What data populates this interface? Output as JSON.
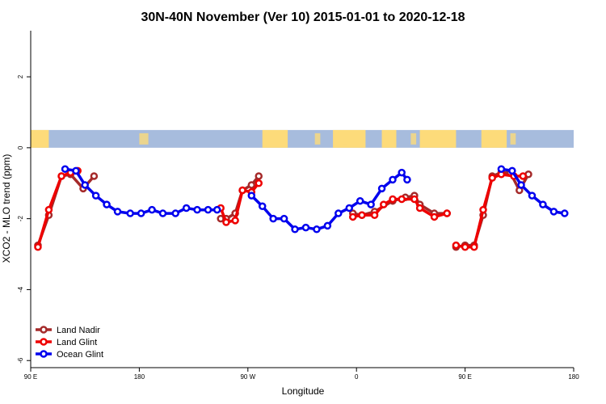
{
  "chart_data": {
    "type": "line",
    "title": "30N-40N November (Ver 10)   2015-01-01 to 2020-12-18",
    "xlabel": "Longitude",
    "ylabel": "XCO2 - MLO trend (ppm)",
    "xlim": [
      90,
      390
    ],
    "ylim": [
      -6.2,
      3.3
    ],
    "x_ticks": [
      {
        "value": 90,
        "label": "90 E"
      },
      {
        "value": 150,
        "label": "180"
      },
      {
        "value": 210,
        "label": "90 W"
      },
      {
        "value": 270,
        "label": "0"
      },
      {
        "value": 330,
        "label": "90 E"
      },
      {
        "value": 390,
        "label": "180"
      }
    ],
    "y_ticks": [
      {
        "value": 2,
        "label": "2"
      },
      {
        "value": 0,
        "label": "0"
      },
      {
        "value": -2,
        "label": "-2"
      },
      {
        "value": -4,
        "label": "-4"
      },
      {
        "value": -6,
        "label": "-6"
      }
    ],
    "map_band": {
      "y_from": 0,
      "y_to": 0.5,
      "land_color": "#FDDB7A",
      "ocean_color": "#A7BCDD"
    },
    "legend": {
      "position": "bottom-left"
    },
    "series": [
      {
        "name": "Land Nadir",
        "color": "#A52A2A",
        "segments": [
          [
            [
              94,
              -2.75
            ],
            [
              100,
              -1.9
            ],
            [
              107,
              -0.8
            ],
            [
              112,
              -0.75
            ],
            [
              119,
              -1.15
            ],
            [
              125,
              -0.8
            ]
          ],
          [
            [
              195,
              -2.0
            ],
            [
              198,
              -2.0
            ],
            [
              203,
              -1.85
            ],
            [
              207,
              -1.2
            ],
            [
              212,
              -1.05
            ],
            [
              216,
              -0.8
            ]
          ],
          [
            [
              268,
              -1.85
            ],
            [
              273,
              -1.9
            ],
            [
              280,
              -1.8
            ],
            [
              290,
              -1.5
            ],
            [
              297,
              -1.4
            ],
            [
              302,
              -1.35
            ],
            [
              305,
              -1.6
            ],
            [
              313,
              -1.85
            ],
            [
              320,
              -1.85
            ]
          ],
          [
            [
              325,
              -2.8
            ],
            [
              330,
              -2.75
            ],
            [
              335,
              -2.75
            ],
            [
              340,
              -1.9
            ],
            [
              345,
              -0.8
            ],
            [
              350,
              -0.7
            ],
            [
              355,
              -0.7
            ],
            [
              360,
              -1.2
            ],
            [
              365,
              -0.75
            ]
          ]
        ]
      },
      {
        "name": "Land Glint",
        "color": "#EE0000",
        "segments": [
          [
            [
              94,
              -2.8
            ],
            [
              100,
              -1.75
            ],
            [
              107,
              -0.8
            ],
            [
              112,
              -0.7
            ],
            [
              116,
              -0.65
            ]
          ],
          [
            [
              195,
              -1.7
            ],
            [
              198,
              -2.1
            ],
            [
              203,
              -2.05
            ],
            [
              207,
              -1.2
            ],
            [
              212,
              -1.25
            ],
            [
              216,
              -1.0
            ]
          ],
          [
            [
              268,
              -1.95
            ],
            [
              273,
              -1.9
            ],
            [
              280,
              -1.9
            ],
            [
              285,
              -1.6
            ],
            [
              290,
              -1.45
            ],
            [
              295,
              -1.45
            ],
            [
              302,
              -1.45
            ],
            [
              305,
              -1.7
            ],
            [
              313,
              -1.95
            ],
            [
              320,
              -1.85
            ]
          ],
          [
            [
              325,
              -2.75
            ],
            [
              330,
              -2.8
            ],
            [
              335,
              -2.8
            ],
            [
              340,
              -1.75
            ],
            [
              345,
              -0.85
            ],
            [
              350,
              -0.75
            ],
            [
              357,
              -0.8
            ],
            [
              362,
              -0.8
            ]
          ]
        ]
      },
      {
        "name": "Ocean Glint",
        "color": "#0000EE",
        "segments": [
          [
            [
              109,
              -0.6
            ],
            [
              115,
              -0.65
            ],
            [
              120,
              -1.05
            ],
            [
              126,
              -1.35
            ],
            [
              132,
              -1.6
            ],
            [
              138,
              -1.8
            ],
            [
              145,
              -1.85
            ],
            [
              151,
              -1.85
            ],
            [
              157,
              -1.75
            ],
            [
              163,
              -1.85
            ],
            [
              170,
              -1.85
            ],
            [
              176,
              -1.7
            ],
            [
              182,
              -1.75
            ],
            [
              188,
              -1.75
            ],
            [
              193,
              -1.75
            ]
          ],
          [
            [
              212,
              -1.35
            ],
            [
              218,
              -1.65
            ],
            [
              224,
              -2.0
            ],
            [
              230,
              -2.0
            ],
            [
              236,
              -2.3
            ],
            [
              242,
              -2.25
            ],
            [
              248,
              -2.3
            ],
            [
              254,
              -2.2
            ],
            [
              260,
              -1.85
            ],
            [
              266,
              -1.7
            ],
            [
              272,
              -1.5
            ],
            [
              278,
              -1.6
            ],
            [
              284,
              -1.15
            ],
            [
              290,
              -0.9
            ],
            [
              295,
              -0.7
            ],
            [
              298,
              -0.9
            ]
          ]
        ]
      }
    ],
    "ocean_continuation": [
      [
        350,
        -0.6
      ],
      [
        356,
        -0.65
      ],
      [
        361,
        -1.05
      ],
      [
        367,
        -1.35
      ],
      [
        373,
        -1.6
      ],
      [
        379,
        -1.8
      ],
      [
        385,
        -1.85
      ]
    ]
  }
}
